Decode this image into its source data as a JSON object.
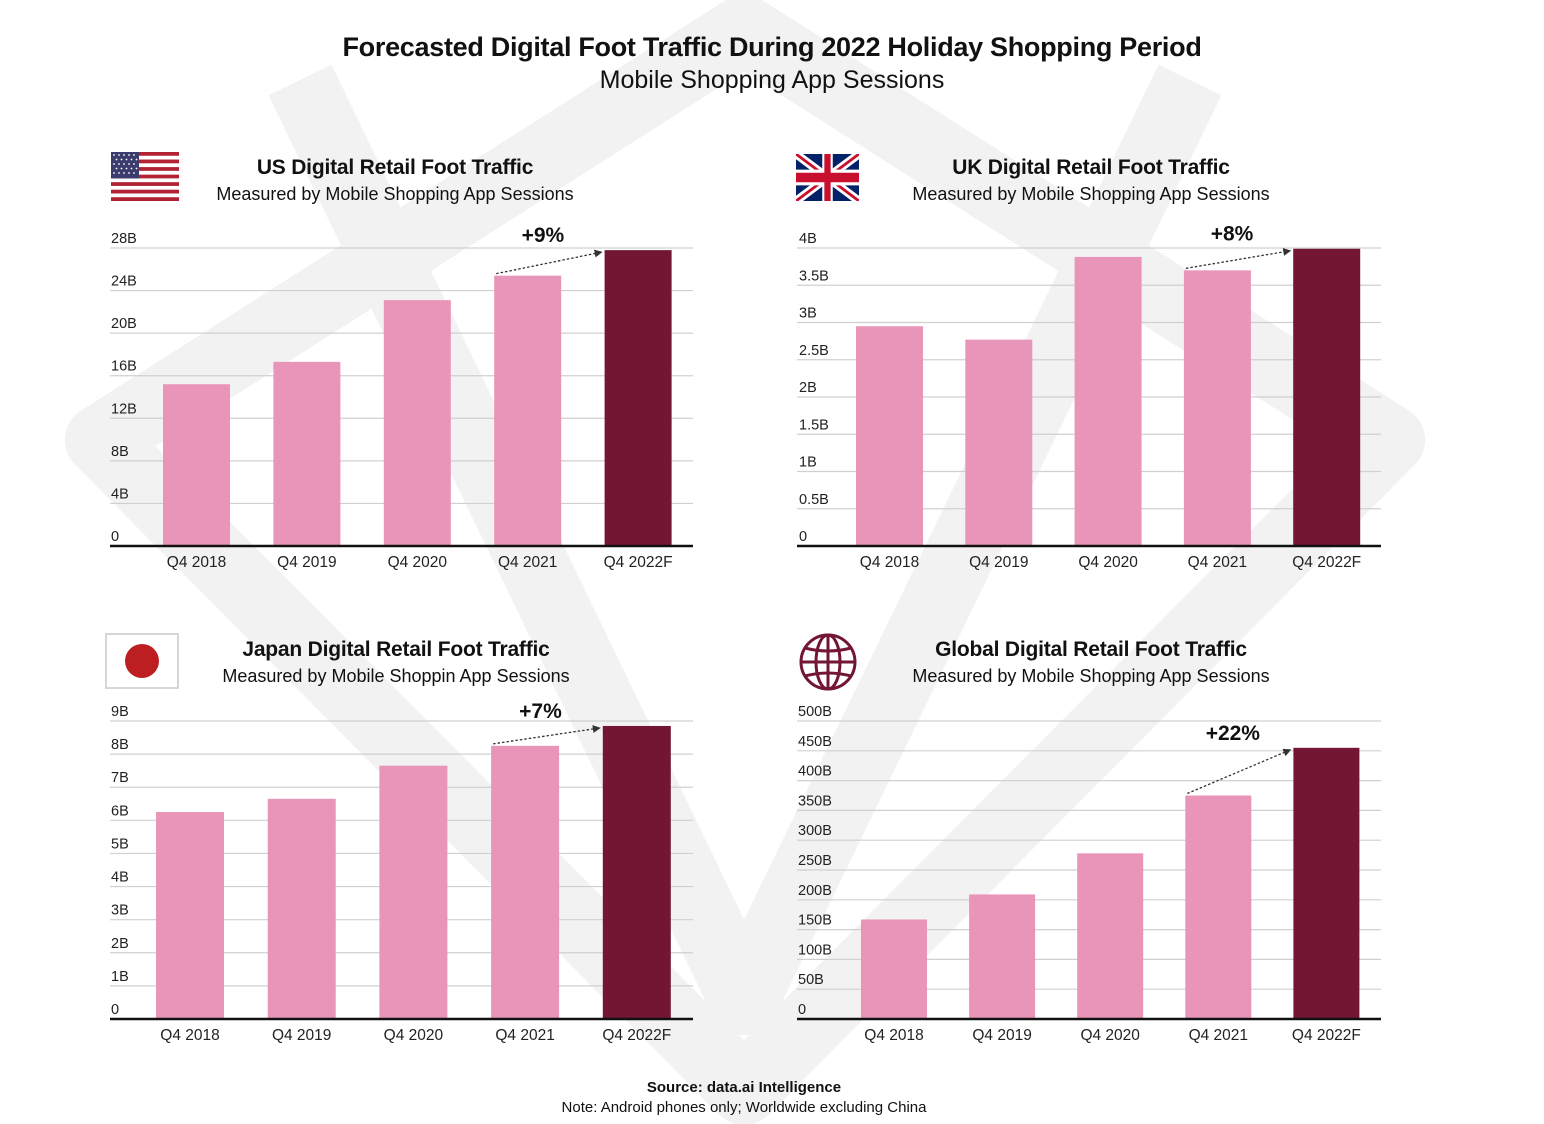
{
  "title": "Forecasted Digital Foot Traffic During 2022 Holiday Shopping Period",
  "subtitle": "Mobile Shopping App Sessions",
  "footer": {
    "source": "Source: data.ai Intelligence",
    "note": "Note: Android phones only; Worldwide excluding China"
  },
  "colors": {
    "historical_bar": "#e895b9",
    "forecast_bar": "#731633",
    "gridline": "#d0d0d0",
    "axis": "#111111",
    "globe_icon": "#731633"
  },
  "panels": [
    {
      "title": "US Digital  Retail  Foot Traffic",
      "subtitle": "Measured by Mobile Shopping App Sessions",
      "icon": "us-flag-icon"
    },
    {
      "title": "UK Digital  Retail  Foot Traffic",
      "subtitle": "Measured by Mobile Shopping App Sessions",
      "icon": "uk-flag-icon"
    },
    {
      "title": "Japan Digital  Retail  Foot Traffic",
      "subtitle": "Measured by Mobile Shoppin App Sessions",
      "icon": "japan-flag-icon"
    },
    {
      "title": "Global Digital  Retail  Foot Traffic",
      "subtitle": "Measured by Mobile Shopping App Sessions",
      "icon": "globe-icon"
    }
  ],
  "chart_data": [
    {
      "type": "bar",
      "title": "US Digital  Retail  Foot Traffic",
      "subtitle": "Measured by Mobile Shopping App Sessions",
      "categories": [
        "Q4 2018",
        "Q4 2019",
        "Q4 2020",
        "Q4 2021",
        "Q4 2022F"
      ],
      "values": [
        15.2,
        17.3,
        23.1,
        25.4,
        27.8
      ],
      "forecast_index": 4,
      "yticks": [
        "0",
        "4B",
        "8B",
        "12B",
        "16B",
        "20B",
        "24B",
        "28B"
      ],
      "ylim": [
        0,
        28
      ],
      "tick_step": 4,
      "growth_annotation": "+9%",
      "grid": true
    },
    {
      "type": "bar",
      "title": "UK Digital  Retail  Foot Traffic",
      "subtitle": "Measured by Mobile Shopping App Sessions",
      "categories": [
        "Q4 2018",
        "Q4 2019",
        "Q4 2020",
        "Q4 2021",
        "Q4 2022F"
      ],
      "values": [
        2.95,
        2.77,
        3.88,
        3.7,
        3.99
      ],
      "forecast_index": 4,
      "yticks": [
        "0",
        "0.5B",
        "1B",
        "1.5B",
        "2B",
        "2.5B",
        "3B",
        "3.5B",
        "4B"
      ],
      "ylim": [
        0,
        4
      ],
      "tick_step": 0.5,
      "growth_annotation": "+8%",
      "grid": true
    },
    {
      "type": "bar",
      "title": "Japan Digital  Retail  Foot Traffic",
      "subtitle": "Measured by Mobile Shoppin App Sessions",
      "categories": [
        "Q4 2018",
        "Q4 2019",
        "Q4 2020",
        "Q4 2021",
        "Q4 2022F"
      ],
      "values": [
        6.25,
        6.65,
        7.65,
        8.25,
        8.85
      ],
      "forecast_index": 4,
      "yticks": [
        "0",
        "1B",
        "2B",
        "3B",
        "4B",
        "5B",
        "6B",
        "7B",
        "8B",
        "9B"
      ],
      "ylim": [
        0,
        9
      ],
      "tick_step": 1,
      "growth_annotation": "+7%",
      "grid": true
    },
    {
      "type": "bar",
      "title": "Global Digital  Retail  Foot Traffic",
      "subtitle": "Measured by Mobile Shopping App Sessions",
      "categories": [
        "Q4 2018",
        "Q4 2019",
        "Q4 2020",
        "Q4 2021",
        "Q4 2022F"
      ],
      "values": [
        167,
        209,
        278,
        375,
        455
      ],
      "forecast_index": 4,
      "yticks": [
        "0",
        "50B",
        "100B",
        "150B",
        "200B",
        "250B",
        "300B",
        "350B",
        "400B",
        "450B",
        "500B"
      ],
      "ylim": [
        0,
        500
      ],
      "tick_step": 50,
      "growth_annotation": "+22%",
      "grid": true
    }
  ]
}
